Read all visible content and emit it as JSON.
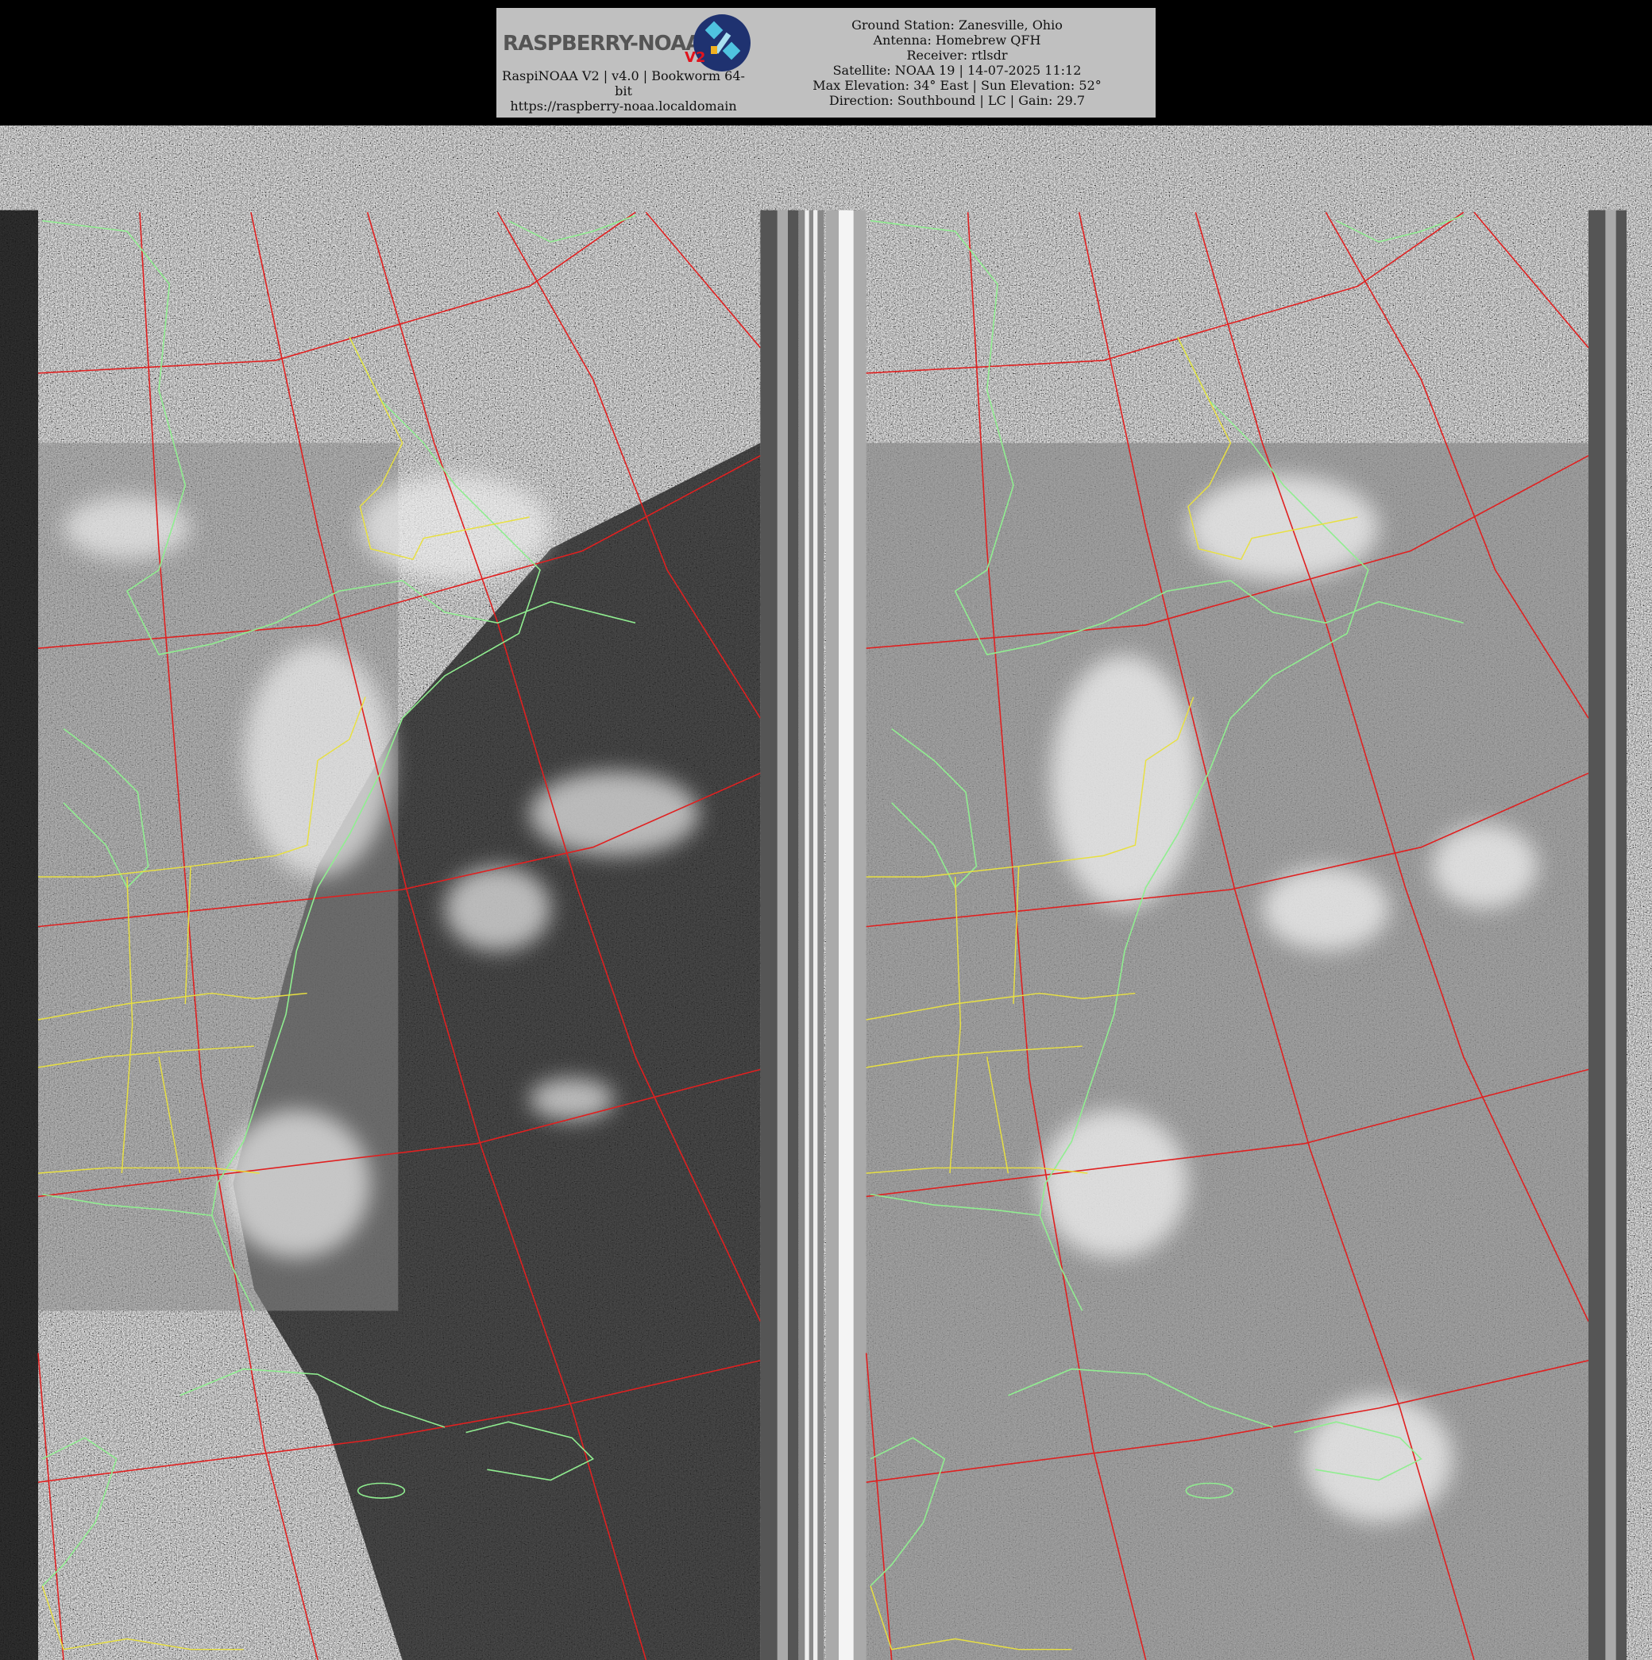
{
  "header": {
    "logo_text": "RASPBERRY-NOAA",
    "logo_badge": "V2",
    "version_line": "RaspiNOAA V2 | v4.0 | Bookworm 64-bit",
    "url": "https://raspberry-noaa.localdomain",
    "info_lines": [
      "Ground Station: Zanesville, Ohio",
      "Antenna: Homebrew QFH",
      "Receiver: rtlsdr",
      "Satellite: NOAA 19 | 14-07-2025 11:12",
      "Max Elevation: 34° East | Sun Elevation: 52°",
      "Direction: Southbound | LC | Gain: 29.7"
    ]
  },
  "imagery": {
    "panels": [
      "channel-a-visible",
      "channel-b-infrared"
    ],
    "colors": {
      "grid": "#e02020",
      "coastline": "#90ee90",
      "borders": "#e8e040",
      "background": "#000000",
      "header": "#c0c0c0"
    }
  }
}
